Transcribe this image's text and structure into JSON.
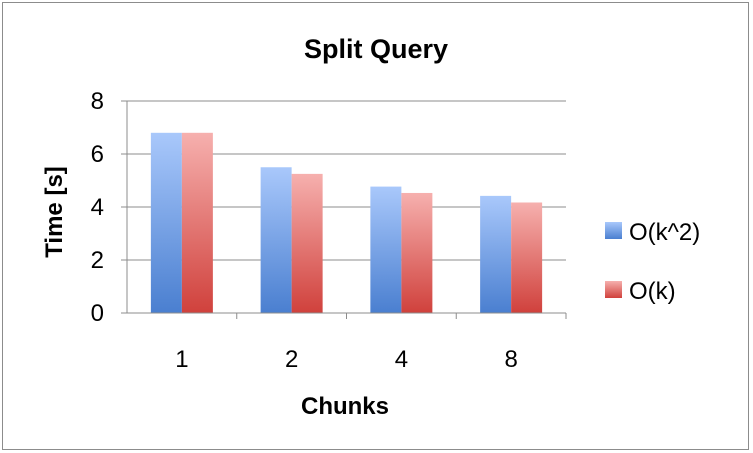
{
  "chart_data": {
    "type": "bar",
    "title": "Split Query",
    "xlabel": "Chunks",
    "ylabel": "Time [s]",
    "ylim": [
      0,
      8
    ],
    "yticks": [
      0,
      2,
      4,
      6,
      8
    ],
    "grid": true,
    "legend_position": "right",
    "categories": [
      "1",
      "2",
      "4",
      "8"
    ],
    "series": [
      {
        "name": "O(k^2)",
        "values": [
          6.8,
          5.5,
          4.77,
          4.42
        ],
        "color": "#4a7fd0",
        "color_light": "#a9c8fb"
      },
      {
        "name": "O(k)",
        "values": [
          6.8,
          5.25,
          4.53,
          4.17
        ],
        "color": "#d0413c",
        "color_light": "#f6b0ae"
      }
    ]
  }
}
